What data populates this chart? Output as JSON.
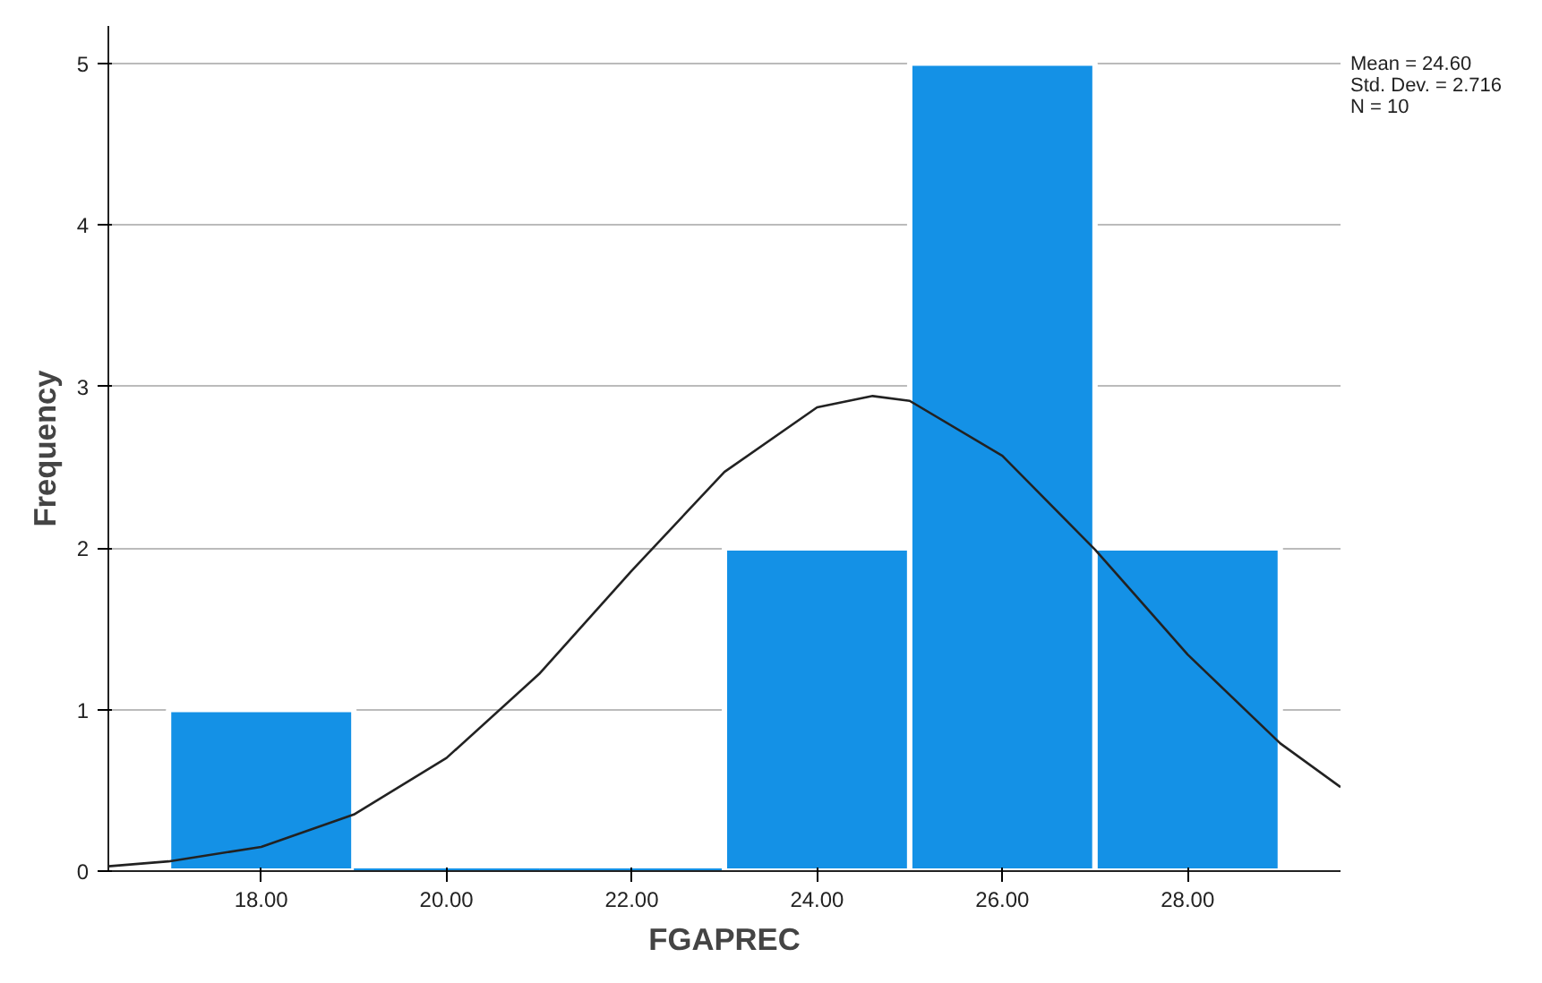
{
  "chart_data": {
    "type": "histogram",
    "xlabel": "FGAPREC",
    "ylabel": "Frequency",
    "bins": [
      17,
      19,
      21,
      23,
      25,
      27,
      29
    ],
    "values": [
      1,
      0,
      0,
      2,
      5,
      2
    ],
    "color": "#1491e6",
    "series": [
      {
        "type": "line",
        "color": "#222222",
        "x": [
          16.35,
          17,
          18,
          19,
          20,
          21,
          22,
          23,
          24,
          24.6,
          25,
          26,
          27,
          28,
          29,
          29.65
        ],
        "values": [
          0.03,
          0.06,
          0.15,
          0.35,
          0.7,
          1.22,
          1.86,
          2.47,
          2.87,
          2.94,
          2.91,
          2.57,
          1.99,
          1.34,
          0.79,
          0.52
        ]
      }
    ],
    "xlim": [
      16.35,
      29.65
    ],
    "ylim": [
      0,
      5.23
    ],
    "xticks": [
      {
        "value": 18,
        "label": "18.00"
      },
      {
        "value": 20,
        "label": "20.00"
      },
      {
        "value": 22,
        "label": "22.00"
      },
      {
        "value": 24,
        "label": "24.00"
      },
      {
        "value": 26,
        "label": "26.00"
      },
      {
        "value": 28,
        "label": "28.00"
      }
    ],
    "yticks": [
      0,
      1,
      2,
      3,
      4,
      5
    ],
    "grid": "y",
    "annotations": [
      "Mean = 24.60",
      "Std. Dev. = 2.716",
      "N = 10"
    ]
  }
}
